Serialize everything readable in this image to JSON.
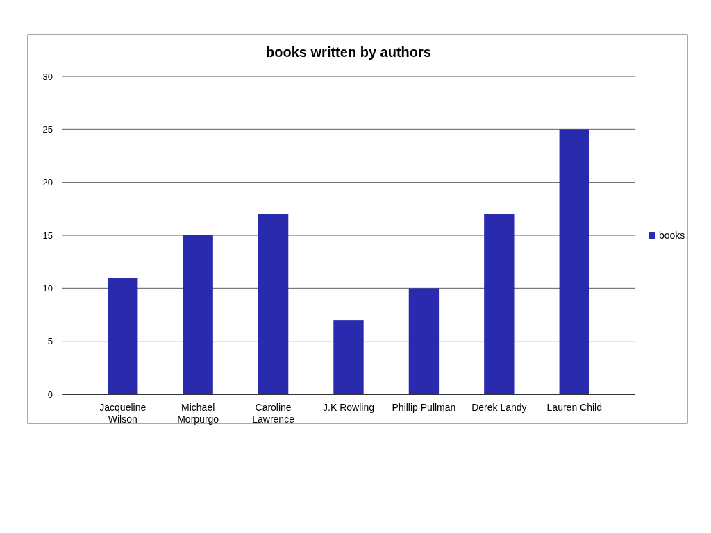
{
  "chart_data": {
    "type": "bar",
    "title": "books written by authors",
    "categories": [
      "Jacqueline Wilson",
      "Michael Morpurgo",
      "Caroline Lawrence",
      "J.K Rowling",
      "Phillip Pullman",
      "Derek Landy",
      "Lauren Child"
    ],
    "series": [
      {
        "name": "books",
        "color": "#2a2aae",
        "values": [
          11,
          15,
          17,
          7,
          10,
          17,
          25
        ]
      }
    ],
    "ylim": [
      0,
      30
    ],
    "yticks": [
      0,
      5,
      10,
      15,
      20,
      25,
      30
    ],
    "grid": "y",
    "legend": "right"
  }
}
